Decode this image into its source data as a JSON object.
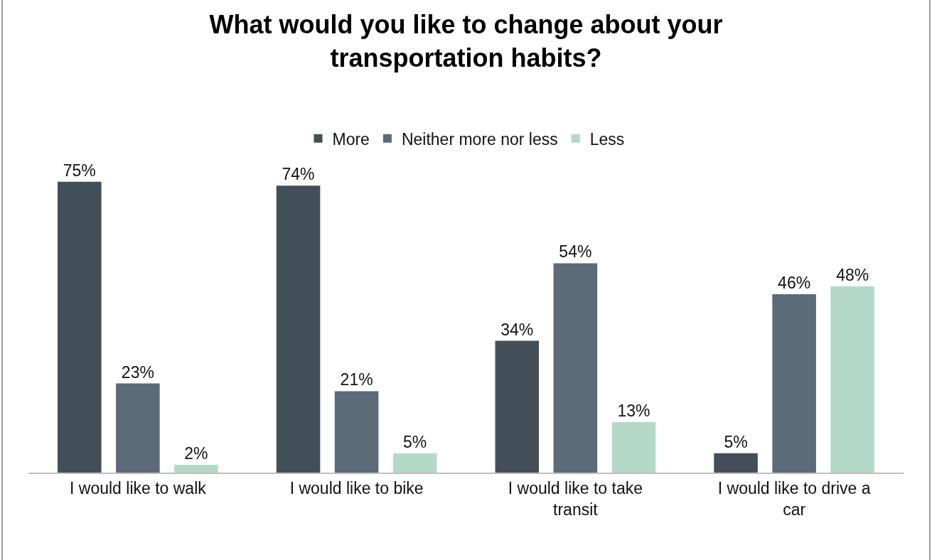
{
  "chart_data": {
    "type": "bar",
    "title": "What would you like to change about your transportation habits?",
    "categories": [
      "I would like to walk",
      "I would like to bike",
      "I would like to take transit",
      "I would like to drive a car"
    ],
    "series": [
      {
        "name": "More",
        "color": "#424f59",
        "values": [
          75,
          74,
          34,
          5
        ],
        "value_labels": [
          "75%",
          "74%",
          "34%",
          "5%"
        ]
      },
      {
        "name": "Neither more nor less",
        "color": "#5b6b78",
        "values": [
          23,
          21,
          54,
          46
        ],
        "value_labels": [
          "23%",
          "21%",
          "54%",
          "46%"
        ]
      },
      {
        "name": "Less",
        "color": "#b5d9c9",
        "values": [
          2,
          5,
          13,
          48
        ],
        "value_labels": [
          "2%",
          "5%",
          "13%",
          "48%"
        ]
      }
    ],
    "legend": "top"
  }
}
